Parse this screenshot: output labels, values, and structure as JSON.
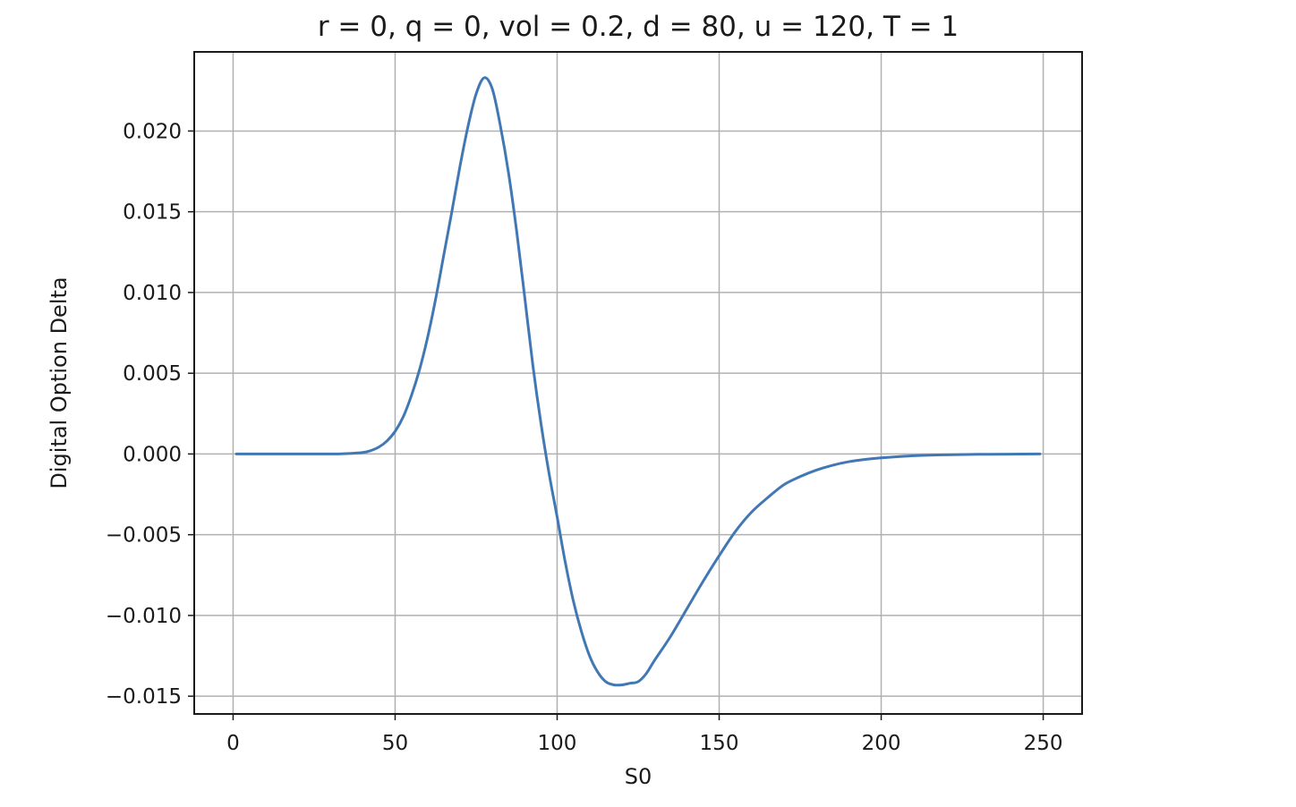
{
  "chart_data": {
    "type": "line",
    "title": "r = 0, q = 0, vol = 0.2, d = 80, u = 120, T = 1",
    "xlabel": "S0",
    "ylabel": "Digital Option Delta",
    "xlim": [
      -12,
      262
    ],
    "ylim": [
      -0.0161,
      0.0249
    ],
    "x_ticks": [
      0,
      50,
      100,
      150,
      200,
      250
    ],
    "x_tick_labels": [
      "0",
      "50",
      "100",
      "150",
      "200",
      "250"
    ],
    "y_ticks": [
      -0.015,
      -0.01,
      -0.005,
      0.0,
      0.005,
      0.01,
      0.015,
      0.02
    ],
    "y_tick_labels": [
      "−0.015",
      "−0.010",
      "−0.005",
      "0.000",
      "0.005",
      "0.010",
      "0.015",
      "0.020"
    ],
    "grid": true,
    "series": [
      {
        "color": "#4178b4",
        "x": [
          1,
          10,
          20,
          30,
          35,
          40,
          42.5,
          45,
          47.5,
          50,
          52.5,
          55,
          57.5,
          60,
          62.5,
          65,
          67.5,
          70,
          72.5,
          75,
          77.5,
          80,
          82.5,
          85,
          87.5,
          90,
          92.5,
          95,
          97.5,
          100,
          102.5,
          105,
          107.5,
          110,
          112.5,
          115,
          117.5,
          120,
          122.5,
          125,
          127.5,
          130,
          135,
          140,
          145,
          150,
          155,
          160,
          165,
          170,
          175,
          180,
          185,
          190,
          195,
          200,
          210,
          220,
          230,
          240,
          249
        ],
        "y": [
          0.0,
          0.0,
          0.0,
          0.0,
          2e-05,
          9e-05,
          0.00021,
          0.00043,
          0.00081,
          0.0014,
          0.0023,
          0.0036,
          0.0052,
          0.0072,
          0.0096,
          0.0123,
          0.015,
          0.0178,
          0.0203,
          0.0223,
          0.0233,
          0.0226,
          0.0203,
          0.0174,
          0.0138,
          0.0097,
          0.0055,
          0.0019,
          -0.0012,
          -0.0039,
          -0.0067,
          -0.0091,
          -0.011,
          -0.0125,
          -0.0135,
          -0.0141,
          -0.0143,
          -0.0143,
          -0.0142,
          -0.0141,
          -0.0136,
          -0.0128,
          -0.0113,
          -0.0096,
          -0.0079,
          -0.0063,
          -0.0048,
          -0.0036,
          -0.0027,
          -0.0019,
          -0.0014,
          -0.001,
          -0.0007,
          -0.00048,
          -0.00034,
          -0.00024,
          -0.00011,
          -5e-05,
          -2e-05,
          -1e-05,
          0.0
        ]
      }
    ]
  }
}
